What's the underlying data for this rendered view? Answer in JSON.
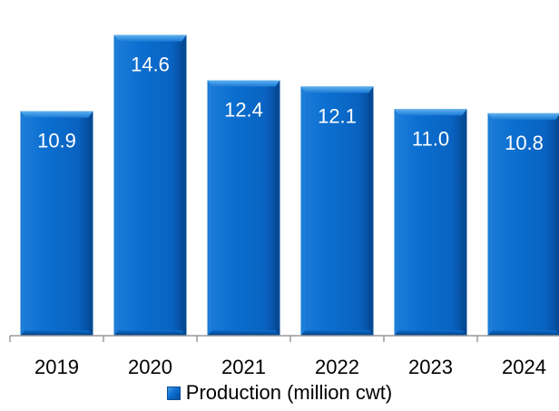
{
  "chart_data": {
    "type": "bar",
    "categories": [
      "2019",
      "2020",
      "2021",
      "2022",
      "2023",
      "2024"
    ],
    "series": [
      {
        "name": "Production (million cwt)",
        "values": [
          10.9,
          14.6,
          12.4,
          12.1,
          11.0,
          10.8
        ],
        "labels": [
          "10.9",
          "14.6",
          "12.4",
          "12.1",
          "11.0",
          "10.8"
        ]
      }
    ],
    "title": "",
    "xlabel": "",
    "ylabel": "",
    "ylim": [
      0,
      16.3
    ],
    "grid": false,
    "legend_position": "bottom",
    "colors": {
      "bar_light": "#2b8be0",
      "bar_mid": "#0b6fd0",
      "bar_dark": "#064a96",
      "label_text": "#ffffff",
      "axis": "#9a9a9a"
    }
  },
  "legend": {
    "label": "Production (million cwt)"
  }
}
